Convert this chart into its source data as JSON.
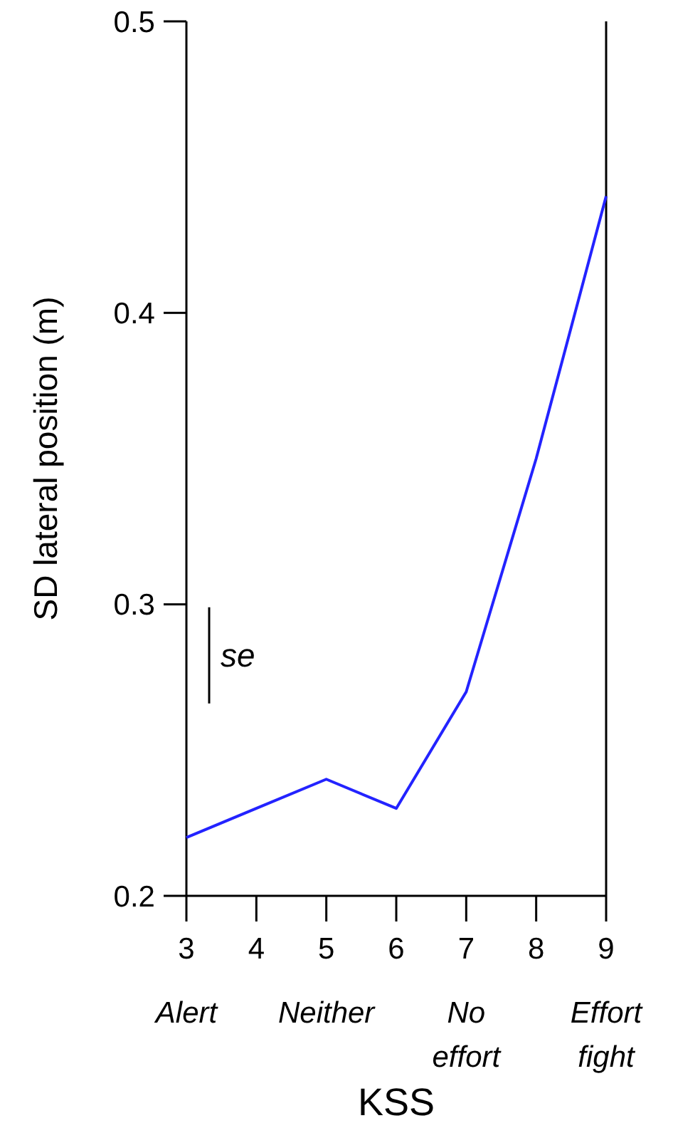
{
  "chart_data": {
    "type": "line",
    "xlabel": "KSS",
    "ylabel": "SD lateral position (m)",
    "x": [
      3,
      4,
      5,
      6,
      7,
      8,
      9
    ],
    "series": [
      {
        "color": "#2323ff",
        "values": [
          0.22,
          0.23,
          0.24,
          0.23,
          0.27,
          0.35,
          0.44
        ]
      }
    ],
    "xlim": [
      3,
      9
    ],
    "xticks": [
      3,
      4,
      5,
      6,
      7,
      8,
      9
    ],
    "ylim": [
      0.2,
      0.5
    ],
    "yticks": [
      {
        "value": 0.2,
        "label": "0.2"
      },
      {
        "value": 0.3,
        "label": "0.3"
      },
      {
        "value": 0.4,
        "label": "0.4"
      },
      {
        "value": 0.5,
        "label": "0.5"
      }
    ],
    "grid": false,
    "marker": "none",
    "line_style": "solid",
    "annotations": [
      "se",
      "Alert",
      "Neither",
      "No effort",
      "Effort fight"
    ]
  }
}
